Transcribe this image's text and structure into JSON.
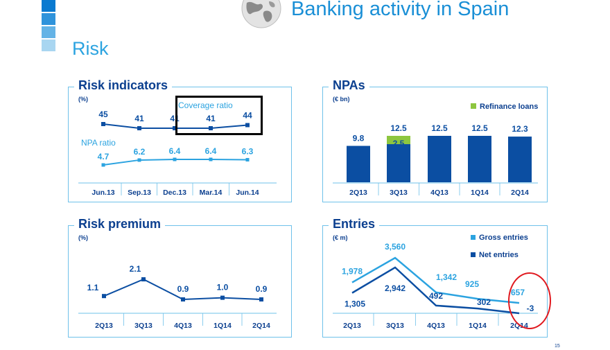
{
  "header": {
    "title": "Banking activity in Spain",
    "section": "Risk",
    "page_number": "15"
  },
  "colors": {
    "dark": "#0b4ea2",
    "light": "#2ba3e0",
    "green": "#8dc63f",
    "border": "#6ec1ea"
  },
  "chart_data": [
    {
      "id": "risk-indicators",
      "type": "line",
      "title": "Risk indicators",
      "unit": "(%)",
      "categories": [
        "Jun.13",
        "Sep.13",
        "Dec.13",
        "Mar.14",
        "Jun.14"
      ],
      "series": [
        {
          "name": "Coverage ratio",
          "values": [
            45,
            41,
            41,
            41,
            44
          ]
        },
        {
          "name": "NPA ratio",
          "values": [
            4.7,
            6.2,
            6.4,
            6.4,
            6.3
          ]
        }
      ],
      "value_labels": {
        "Coverage ratio": [
          "45",
          "41",
          "41",
          "41",
          "44"
        ],
        "NPA ratio": [
          "4.7",
          "6.2",
          "6.4",
          "6.4",
          "6.3"
        ]
      }
    },
    {
      "id": "npas",
      "type": "bar",
      "title": "NPAs",
      "unit": "(€ bn)",
      "legend": [
        "Refinance loans"
      ],
      "categories": [
        "2Q13",
        "3Q13",
        "4Q13",
        "1Q14",
        "2Q14"
      ],
      "values": [
        9.8,
        12.5,
        12.5,
        12.5,
        12.3
      ],
      "value_labels": [
        "9.8",
        "12.5",
        "12.5",
        "12.5",
        "12.3"
      ],
      "refinance_loans": [
        0,
        2.5,
        0,
        0,
        0
      ],
      "refinance_label": "2.5",
      "ylim": [
        0,
        13
      ]
    },
    {
      "id": "risk-premium",
      "type": "line",
      "title": "Risk premium",
      "unit": "(%)",
      "categories": [
        "2Q13",
        "3Q13",
        "4Q13",
        "1Q14",
        "2Q14"
      ],
      "series": [
        {
          "name": "Risk premium",
          "values": [
            1.1,
            2.1,
            0.9,
            1.0,
            0.9
          ]
        }
      ],
      "value_labels": [
        "1.1",
        "2.1",
        "0.9",
        "1.0",
        "0.9"
      ]
    },
    {
      "id": "entries",
      "type": "line",
      "title": "Entries",
      "unit": "(€ m)",
      "legend": [
        "Gross entries",
        "Net entries"
      ],
      "categories": [
        "2Q13",
        "3Q13",
        "4Q13",
        "1Q14",
        "2Q14"
      ],
      "series": [
        {
          "name": "Gross entries",
          "values": [
            1978,
            3560,
            1342,
            925,
            657
          ]
        },
        {
          "name": "Net entries",
          "values": [
            1305,
            2942,
            492,
            302,
            -3
          ]
        }
      ],
      "value_labels": {
        "Gross entries": [
          "1,978",
          "3,560",
          "1,342",
          "925",
          "657"
        ],
        "Net entries": [
          "1,305",
          "2,942",
          "492",
          "302",
          "-3"
        ]
      }
    }
  ]
}
